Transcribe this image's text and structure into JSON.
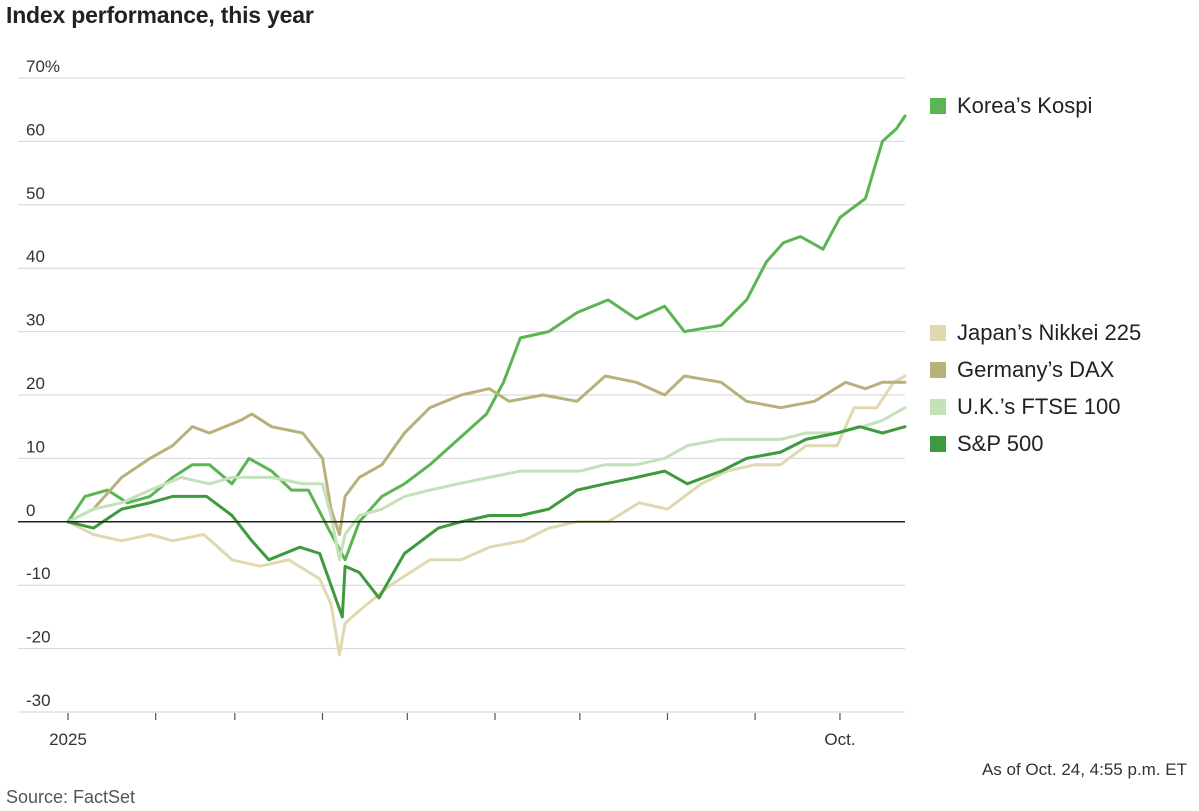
{
  "title": "Index performance, this year",
  "note": "As of Oct. 24, 4:55 p.m. ET",
  "source": "Source: FactSet",
  "chart_data": {
    "type": "line",
    "title": "Index performance, this year",
    "xlabel": "",
    "ylabel": "",
    "ylim": [
      -30,
      70
    ],
    "yticks": [
      -30,
      -20,
      -10,
      0,
      10,
      20,
      30,
      40,
      50,
      60,
      70
    ],
    "ytick_labels": [
      "-30",
      "-20",
      "-10",
      "0",
      "10",
      "20",
      "30",
      "40",
      "50",
      "60",
      "70%"
    ],
    "xlim": [
      "2025-01-01",
      "2025-10-24"
    ],
    "xticks": [
      "2025-01-01",
      "2025-02-01",
      "2025-03-01",
      "2025-04-01",
      "2025-05-01",
      "2025-06-01",
      "2025-07-01",
      "2025-08-01",
      "2025-09-01",
      "2025-10-01"
    ],
    "xtick_labels": [
      "2025",
      "",
      "",
      "",
      "",
      "",
      "",
      "",
      "",
      "Oct."
    ],
    "grid": true,
    "legend_placement": "right",
    "series": [
      {
        "name": "Korea’s Kospi",
        "color": "#5ab552",
        "x": [
          "2025-01-01",
          "2025-01-07",
          "2025-01-15",
          "2025-01-22",
          "2025-01-30",
          "2025-02-07",
          "2025-02-14",
          "2025-02-20",
          "2025-02-28",
          "2025-03-06",
          "2025-03-14",
          "2025-03-21",
          "2025-03-27",
          "2025-04-03",
          "2025-04-09",
          "2025-04-14",
          "2025-04-22",
          "2025-04-30",
          "2025-05-09",
          "2025-05-19",
          "2025-05-29",
          "2025-06-04",
          "2025-06-10",
          "2025-06-20",
          "2025-06-30",
          "2025-07-11",
          "2025-07-21",
          "2025-07-31",
          "2025-08-07",
          "2025-08-20",
          "2025-08-29",
          "2025-09-05",
          "2025-09-11",
          "2025-09-17",
          "2025-09-25",
          "2025-10-01",
          "2025-10-10",
          "2025-10-16",
          "2025-10-21",
          "2025-10-24"
        ],
        "values": [
          0,
          4,
          5,
          3,
          4,
          7,
          9,
          9,
          6,
          10,
          8,
          5,
          5,
          -1,
          -6,
          0,
          4,
          6,
          9,
          13,
          17,
          22,
          29,
          30,
          33,
          35,
          32,
          34,
          30,
          31,
          35,
          41,
          44,
          45,
          43,
          48,
          51,
          60,
          62,
          64
        ]
      },
      {
        "name": "Japan’s Nikkei 225",
        "color": "#e0d8b0",
        "x": [
          "2025-01-01",
          "2025-01-10",
          "2025-01-20",
          "2025-01-30",
          "2025-02-07",
          "2025-02-18",
          "2025-02-28",
          "2025-03-10",
          "2025-03-20",
          "2025-03-31",
          "2025-04-04",
          "2025-04-07",
          "2025-04-09",
          "2025-04-14",
          "2025-04-25",
          "2025-05-09",
          "2025-05-20",
          "2025-05-30",
          "2025-06-11",
          "2025-06-20",
          "2025-06-30",
          "2025-07-11",
          "2025-07-22",
          "2025-08-01",
          "2025-08-13",
          "2025-08-22",
          "2025-09-01",
          "2025-09-10",
          "2025-09-19",
          "2025-09-30",
          "2025-10-06",
          "2025-10-14",
          "2025-10-20",
          "2025-10-24"
        ],
        "values": [
          0,
          -2,
          -3,
          -2,
          -3,
          -2,
          -6,
          -7,
          -6,
          -9,
          -13,
          -21,
          -16,
          -14,
          -10,
          -6,
          -6,
          -4,
          -3,
          -1,
          0,
          0,
          3,
          2,
          6,
          8,
          9,
          9,
          12,
          12,
          18,
          18,
          22,
          23
        ]
      },
      {
        "name": "Germany’s DAX",
        "color": "#b9b07a",
        "x": [
          "2025-01-01",
          "2025-01-10",
          "2025-01-20",
          "2025-01-30",
          "2025-02-07",
          "2025-02-14",
          "2025-02-20",
          "2025-03-03",
          "2025-03-07",
          "2025-03-14",
          "2025-03-25",
          "2025-04-01",
          "2025-04-04",
          "2025-04-07",
          "2025-04-09",
          "2025-04-14",
          "2025-04-22",
          "2025-04-30",
          "2025-05-09",
          "2025-05-20",
          "2025-05-30",
          "2025-06-06",
          "2025-06-18",
          "2025-06-30",
          "2025-07-10",
          "2025-07-21",
          "2025-07-31",
          "2025-08-07",
          "2025-08-20",
          "2025-08-29",
          "2025-09-10",
          "2025-09-22",
          "2025-10-03",
          "2025-10-10",
          "2025-10-16",
          "2025-10-24"
        ],
        "values": [
          0,
          2,
          7,
          10,
          12,
          15,
          14,
          16,
          17,
          15,
          14,
          10,
          2,
          -2,
          4,
          7,
          9,
          14,
          18,
          20,
          21,
          19,
          20,
          19,
          23,
          22,
          20,
          23,
          22,
          19,
          18,
          19,
          22,
          21,
          22,
          22
        ]
      },
      {
        "name": "U.K.’s FTSE 100",
        "color": "#c4e2ba",
        "x": [
          "2025-01-01",
          "2025-01-10",
          "2025-01-20",
          "2025-01-30",
          "2025-02-10",
          "2025-02-20",
          "2025-02-28",
          "2025-03-07",
          "2025-03-14",
          "2025-03-25",
          "2025-04-01",
          "2025-04-04",
          "2025-04-07",
          "2025-04-09",
          "2025-04-14",
          "2025-04-22",
          "2025-04-30",
          "2025-05-09",
          "2025-05-19",
          "2025-05-30",
          "2025-06-10",
          "2025-06-20",
          "2025-07-01",
          "2025-07-10",
          "2025-07-21",
          "2025-07-31",
          "2025-08-08",
          "2025-08-20",
          "2025-08-29",
          "2025-09-10",
          "2025-09-19",
          "2025-09-30",
          "2025-10-09",
          "2025-10-16",
          "2025-10-24"
        ],
        "values": [
          0,
          2,
          3,
          5,
          7,
          6,
          7,
          7,
          7,
          6,
          6,
          1,
          -6,
          -2,
          1,
          2,
          4,
          5,
          6,
          7,
          8,
          8,
          8,
          9,
          9,
          10,
          12,
          13,
          13,
          13,
          14,
          14,
          15,
          16,
          18
        ]
      },
      {
        "name": "S&P 500",
        "color": "#3f9a3f",
        "x": [
          "2025-01-01",
          "2025-01-10",
          "2025-01-20",
          "2025-01-30",
          "2025-02-07",
          "2025-02-19",
          "2025-02-28",
          "2025-03-07",
          "2025-03-13",
          "2025-03-24",
          "2025-03-31",
          "2025-04-04",
          "2025-04-08",
          "2025-04-09",
          "2025-04-14",
          "2025-04-21",
          "2025-04-30",
          "2025-05-12",
          "2025-05-20",
          "2025-05-30",
          "2025-06-10",
          "2025-06-20",
          "2025-06-30",
          "2025-07-10",
          "2025-07-21",
          "2025-07-31",
          "2025-08-08",
          "2025-08-20",
          "2025-08-29",
          "2025-09-10",
          "2025-09-19",
          "2025-09-30",
          "2025-10-08",
          "2025-10-16",
          "2025-10-24"
        ],
        "values": [
          0,
          -1,
          2,
          3,
          4,
          4,
          1,
          -3,
          -6,
          -4,
          -5,
          -10,
          -15,
          -7,
          -8,
          -12,
          -5,
          -1,
          0,
          1,
          1,
          2,
          5,
          6,
          7,
          8,
          6,
          8,
          10,
          11,
          13,
          14,
          15,
          14,
          15
        ]
      }
    ]
  }
}
